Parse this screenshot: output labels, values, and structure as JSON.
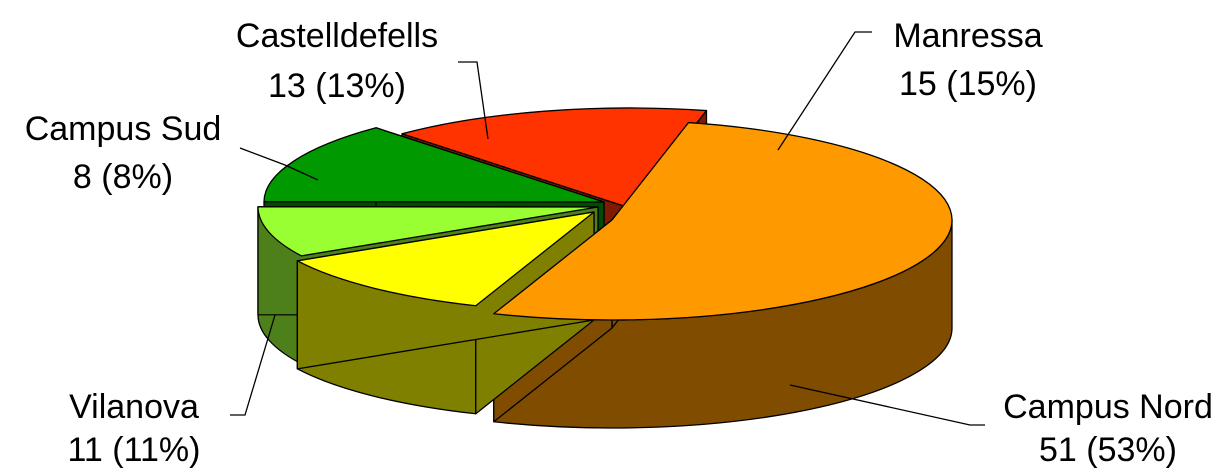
{
  "chart_data": {
    "type": "pie",
    "style": "3d-exploded",
    "title": "",
    "legend": "none",
    "slices": [
      {
        "name": "Campus Nord",
        "value": 51,
        "label": "51 (53%)",
        "color": "#FF9900",
        "side_color": "#804D00"
      },
      {
        "name": "Vilanova",
        "value": 11,
        "label": "11 (11%)",
        "color": "#FFFF00",
        "side_color": "#808000"
      },
      {
        "name": "Campus Sud",
        "value": 8,
        "label": "8 (8%)",
        "color": "#99FF33",
        "side_color": "#4D801A"
      },
      {
        "name": "Castelldefells",
        "value": 13,
        "label": "13 (13%)",
        "color": "#009900",
        "side_color": "#004D00"
      },
      {
        "name": "Manressa",
        "value": 15,
        "label": "15 (15%)",
        "color": "#FF3300",
        "side_color": "#801A00"
      }
    ]
  }
}
